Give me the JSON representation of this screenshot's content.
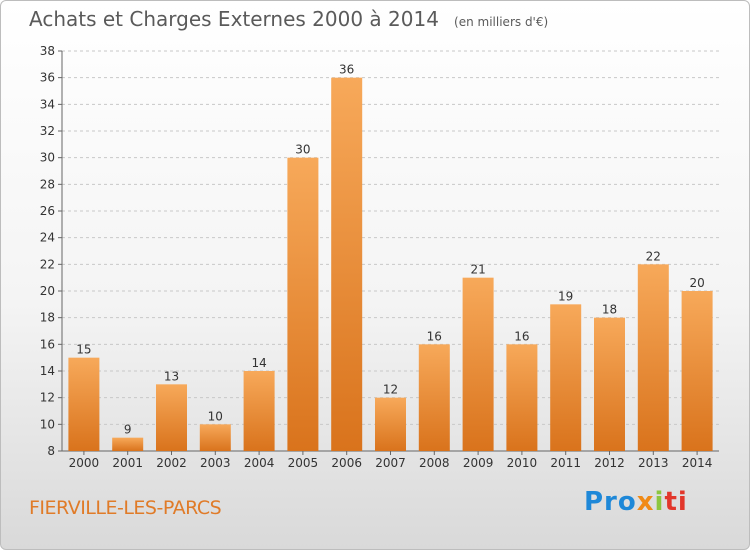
{
  "header": {
    "title": "Achats et Charges Externes 2000 à 2014",
    "unit": "(en milliers d'€)"
  },
  "footer": {
    "place": "FIERVILLE-LES-PARCS",
    "logo": [
      "Pro",
      "x",
      "i",
      "ti"
    ]
  },
  "colors": {
    "bar_top": "#f7a95a",
    "bar_bottom": "#d9731c",
    "grid": "#c8c8c8",
    "place": "#e07b28"
  },
  "chart_data": {
    "type": "bar",
    "title": "Achats et Charges Externes 2000 à 2014",
    "subtitle": "(en milliers d'€)",
    "categories": [
      "2000",
      "2001",
      "2002",
      "2003",
      "2004",
      "2005",
      "2006",
      "2007",
      "2008",
      "2009",
      "2010",
      "2011",
      "2012",
      "2013",
      "2014"
    ],
    "values": [
      15,
      9,
      13,
      10,
      14,
      30,
      36,
      12,
      16,
      21,
      16,
      19,
      18,
      22,
      20
    ],
    "ylim": [
      8,
      38
    ],
    "yticks": [
      8,
      10,
      12,
      14,
      16,
      18,
      20,
      22,
      24,
      26,
      28,
      30,
      32,
      34,
      36,
      38
    ],
    "grid": "horizontal dashed",
    "legend": "none"
  }
}
